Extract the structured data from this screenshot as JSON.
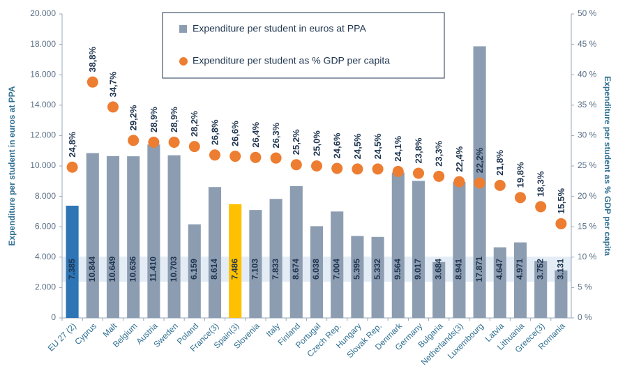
{
  "chart_data": {
    "type": "bar_dot",
    "ylabel": "Expenditure per student in euros at PPA",
    "y2label": "Expenditure per student as % GDP per capita",
    "categories": [
      "EU 27 (2)",
      "Cyprus",
      "Malt",
      "Belgium",
      "Austria",
      "Sweden",
      "Poland",
      "France(3)",
      "Spain(3)",
      "Slovenia",
      "Italy",
      "Finland",
      "Portugal",
      "Czech Rep.",
      "Hungary",
      "Slovak Rep.",
      "Denmark",
      "Germany",
      "Bulgaria",
      "Netherlands(3)",
      "Luxembourg",
      "Latvia",
      "Lithuania",
      "Greece(3)",
      "Romania"
    ],
    "series": [
      {
        "name": "Expenditure per student in euros at PPA",
        "color": "#8d9db1",
        "colors": [
          "#2e75b6",
          "#8d9db1",
          "#8d9db1",
          "#8d9db1",
          "#8d9db1",
          "#8d9db1",
          "#8d9db1",
          "#8d9db1",
          "#ffc000",
          "#8d9db1",
          "#8d9db1",
          "#8d9db1",
          "#8d9db1",
          "#8d9db1",
          "#8d9db1",
          "#8d9db1",
          "#8d9db1",
          "#8d9db1",
          "#8d9db1",
          "#8d9db1",
          "#8d9db1",
          "#8d9db1",
          "#8d9db1",
          "#8d9db1",
          "#8d9db1"
        ],
        "values": [
          7385,
          10844,
          10649,
          10636,
          11410,
          10703,
          6159,
          8614,
          7486,
          7103,
          7833,
          8674,
          6038,
          7004,
          5395,
          5332,
          9564,
          9017,
          3684,
          8941,
          17871,
          4647,
          4971,
          3752,
          3131
        ],
        "value_labels": [
          "7.385",
          "10.844",
          "10.649",
          "10.636",
          "11.410",
          "10.703",
          "6.159",
          "8.614",
          "7.486",
          "7.103",
          "7.833",
          "8.674",
          "6.038",
          "7.004",
          "5.395",
          "5.332",
          "9.564",
          "9.017",
          "3.684",
          "8.941",
          "17.871",
          "4.647",
          "4.971",
          "3.752",
          "3.131"
        ]
      },
      {
        "name": "Expenditure per student as % GDP per capita",
        "color": "#ed7d31",
        "axis": "y2",
        "values": [
          24.8,
          38.8,
          34.7,
          29.2,
          28.9,
          28.9,
          28.2,
          26.8,
          26.6,
          26.4,
          26.3,
          25.2,
          25.0,
          24.6,
          24.5,
          24.5,
          24.1,
          23.8,
          23.3,
          22.4,
          22.2,
          21.8,
          19.8,
          18.3,
          15.5
        ],
        "value_labels": [
          "24,8%",
          "38,8%",
          "34,7%",
          "29,2%",
          "28,9%",
          "28,9%",
          "28,2%",
          "26,8%",
          "26,6%",
          "26,4%",
          "26,3%",
          "25,2%",
          "25,0%",
          "24,6%",
          "24,5%",
          "24,5%",
          "24,1%",
          "23,8%",
          "23,3%",
          "22,4%",
          "22,2%",
          "21,8%",
          "19,8%",
          "18,3%",
          "15,5%"
        ]
      }
    ],
    "ylim": [
      0,
      20000
    ],
    "yticks": [
      0,
      {
        "value": 2000,
        "label": "2.000"
      },
      {
        "value": 4000,
        "label": "4.000"
      },
      {
        "value": 6000,
        "label": "6.000"
      },
      {
        "value": 8000,
        "label": "8.000"
      },
      {
        "value": 10000,
        "label": "10.000"
      },
      {
        "value": 12000,
        "label": "12.000"
      },
      {
        "value": 14000,
        "label": "14.000"
      },
      {
        "value": 16000,
        "label": "16.000"
      },
      {
        "value": 18000,
        "label": "18.000"
      },
      {
        "value": 20000,
        "label": "20.000"
      }
    ],
    "y2lim": [
      0,
      50
    ],
    "y2ticks": [
      {
        "value": 0,
        "label": "0 %"
      },
      {
        "value": 5,
        "label": "5 %"
      },
      {
        "value": 10,
        "label": "10 %"
      },
      {
        "value": 15,
        "label": "15 %"
      },
      {
        "value": 20,
        "label": "20 %"
      },
      {
        "value": 25,
        "label": "25 %"
      },
      {
        "value": 30,
        "label": "30 %"
      },
      {
        "value": 35,
        "label": "35 %"
      },
      {
        "value": 40,
        "label": "40 %"
      },
      {
        "value": 45,
        "label": "45 %"
      },
      {
        "value": 50,
        "label": "50 %"
      }
    ],
    "legend": "top-center"
  }
}
